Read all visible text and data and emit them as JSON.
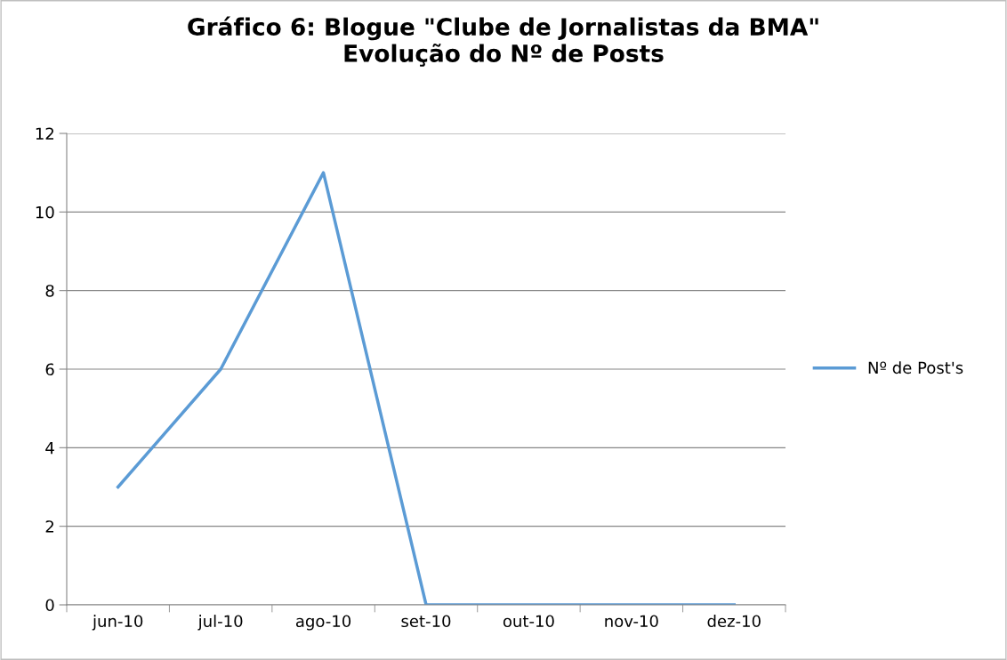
{
  "chart_data": {
    "type": "line",
    "title": "Gráfico 6: Blogue \"Clube de Jornalistas da BMA\"\nEvolução do Nº de Posts",
    "categories": [
      "jun-10",
      "jul-10",
      "ago-10",
      "set-10",
      "out-10",
      "nov-10",
      "dez-10"
    ],
    "series": [
      {
        "name": "Nº de Post's",
        "color": "#5b9bd5",
        "values": [
          3,
          6,
          11,
          0,
          0,
          0,
          0
        ]
      }
    ],
    "ylim": [
      0,
      12
    ],
    "yticks": [
      0,
      2,
      4,
      6,
      8,
      10,
      12
    ],
    "grid": "y",
    "legend": "right",
    "marker": "none",
    "line_style": "solid"
  }
}
